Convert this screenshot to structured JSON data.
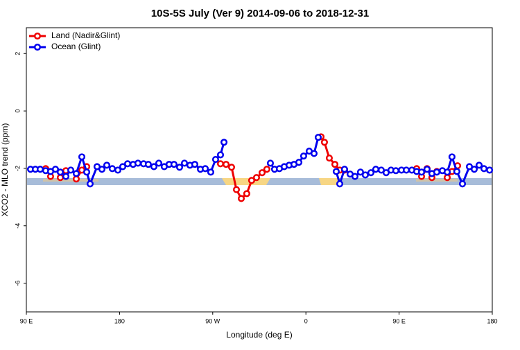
{
  "chart_data": {
    "type": "line",
    "title": "10S-5S July (Ver 9)   2014-09-06 to 2018-12-31",
    "x_label": "Longitude (deg E)",
    "y_label": "XCO2 - MLO trend (ppm)",
    "xlim": [
      90,
      540
    ],
    "ylim": [
      -7,
      2.9
    ],
    "xticks": [
      {
        "value": 90,
        "label": "90 E"
      },
      {
        "value": 180,
        "label": "180"
      },
      {
        "value": 270,
        "label": "90 W"
      },
      {
        "value": 360,
        "label": "0"
      },
      {
        "value": 450,
        "label": "90 E"
      },
      {
        "value": 540,
        "label": "180"
      }
    ],
    "yticks": [
      -6,
      -4,
      -2,
      0,
      2
    ],
    "legend": "top-left",
    "series": [
      {
        "name": "Land (Nadir&Glint)",
        "color": "#ee0000",
        "x": [
          108.7,
          113.4,
          null,
          122.8,
          128.2,
          null,
          138.2,
          143.6,
          148.3,
          null,
          277.5,
          282.9,
          288.2,
          292.9,
          297.6,
          302.9,
          307.6,
          312.3,
          317.7,
          322.3,
          null,
          374.6,
          377.9,
          382.6,
          388.0,
          392.7,
          397.3,
          null,
          467.0,
          471.7,
          477.0,
          481.7,
          486.4,
          null,
          496.5,
          501.1,
          506.5
        ],
        "values": [
          -2.01,
          -2.28,
          null,
          -2.32,
          -2.08,
          null,
          -2.37,
          -2.06,
          -1.94,
          null,
          -1.84,
          -1.86,
          -1.96,
          -2.74,
          -3.05,
          -2.88,
          -2.42,
          -2.32,
          -2.15,
          -2.03,
          null,
          -0.9,
          -1.09,
          -1.64,
          -1.86,
          -2.06,
          -2.06,
          null,
          -2.01,
          -2.28,
          -2.01,
          -2.32,
          -2.11,
          null,
          -2.32,
          -2.11,
          -1.91
        ]
      },
      {
        "name": "Ocean (Glint)",
        "color": "#0000ee",
        "x": [
          94.0,
          98.7,
          103.4,
          108.7,
          113.4,
          118.1,
          122.8,
          128.2,
          132.9,
          138.2,
          143.6,
          148.3,
          151.6,
          158.3,
          163.0,
          167.7,
          173.0,
          178.4,
          183.1,
          187.8,
          193.1,
          197.8,
          203.2,
          207.8,
          213.2,
          217.9,
          223.2,
          227.9,
          232.6,
          238.0,
          242.7,
          248.0,
          252.7,
          258.1,
          262.8,
          268.1,
          272.8,
          277.5,
          280.9,
          null,
          325.7,
          329.7,
          334.4,
          339.1,
          343.8,
          348.5,
          353.2,
          357.8,
          363.2,
          367.9,
          371.9,
          null,
          389.3,
          392.7,
          397.3,
          402.7,
          407.4,
          412.7,
          417.4,
          422.8,
          427.5,
          432.8,
          437.5,
          442.2,
          446.9,
          452.3,
          457.0,
          462.3,
          467.0,
          471.7,
          477.0,
          481.7,
          486.4,
          491.8,
          496.5,
          501.1,
          505.8,
          511.2,
          517.9,
          522.6,
          527.3,
          532.0,
          537.4
        ],
        "values": [
          -2.03,
          -2.03,
          -2.03,
          -2.08,
          -2.11,
          -2.03,
          -2.13,
          -2.28,
          -2.06,
          -2.18,
          -1.6,
          -2.13,
          -2.54,
          -1.94,
          -2.03,
          -1.89,
          -2.01,
          -2.06,
          -1.94,
          -1.84,
          -1.86,
          -1.82,
          -1.84,
          -1.86,
          -1.94,
          -1.82,
          -1.94,
          -1.86,
          -1.86,
          -1.96,
          -1.82,
          -1.89,
          -1.86,
          -2.03,
          -2.01,
          -2.13,
          -1.69,
          -1.53,
          -1.09,
          null,
          -1.82,
          -2.03,
          -2.01,
          -1.94,
          -1.89,
          -1.86,
          -1.79,
          -1.57,
          -1.4,
          -1.48,
          -0.92,
          null,
          -2.11,
          -2.54,
          -2.03,
          -2.2,
          -2.28,
          -2.13,
          -2.23,
          -2.15,
          -2.03,
          -2.06,
          -2.15,
          -2.06,
          -2.08,
          -2.06,
          -2.06,
          -2.06,
          -2.11,
          -2.13,
          -2.03,
          -2.18,
          -2.13,
          -2.08,
          -2.13,
          -1.6,
          -2.11,
          -2.54,
          -1.94,
          -2.03,
          -1.89,
          -2.01,
          -2.06
        ]
      }
    ]
  }
}
